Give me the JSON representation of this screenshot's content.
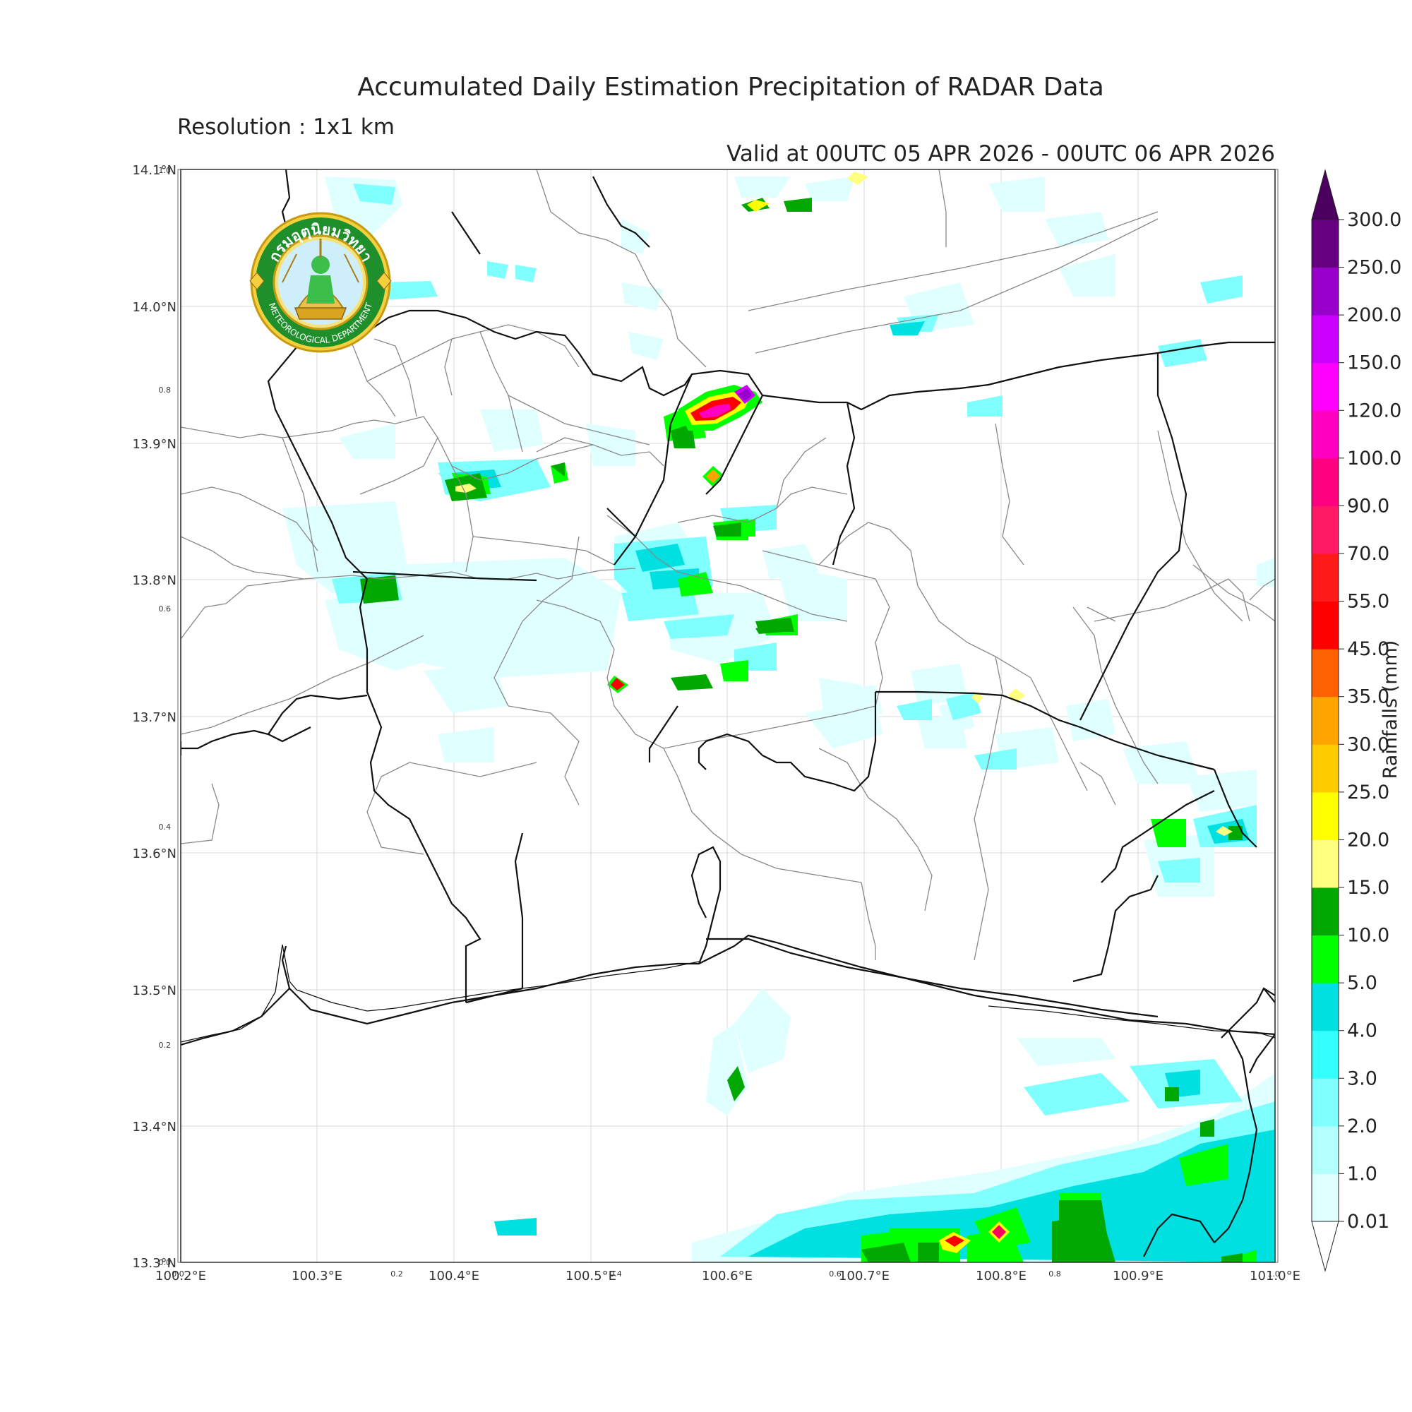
{
  "title": "Accumulated Daily Estimation Precipitation of RADAR Data",
  "resolution": "Resolution : 1x1 km",
  "valid": "Valid at 00UTC 05 APR 2026 - 00UTC 06 APR 2026",
  "logo": {
    "top_text": "กรมอุตุนิยมวิทยา",
    "bottom_text": "METEOROLOGICAL DEPARTMENT"
  },
  "colorbar": {
    "label": "Rainfalls (mm)",
    "levels": [
      "0.01",
      "1.0",
      "2.0",
      "3.0",
      "4.0",
      "5.0",
      "10.0",
      "15.0",
      "20.0",
      "25.0",
      "30.0",
      "35.0",
      "45.0",
      "55.0",
      "70.0",
      "90.0",
      "100.0",
      "120.0",
      "150.0",
      "200.0",
      "250.0",
      "300.0"
    ],
    "colors": [
      "#e0ffff",
      "#b3ffff",
      "#80ffff",
      "#33ffff",
      "#00e0e0",
      "#00ff00",
      "#00a800",
      "#ffff80",
      "#ffff00",
      "#ffcc00",
      "#ffa500",
      "#ff6000",
      "#ff0000",
      "#ff1a1a",
      "#ff1a66",
      "#ff0080",
      "#ff00c0",
      "#ff00ff",
      "#cc00ff",
      "#9900cc",
      "#660080"
    ],
    "extend_top_color": "#4b0060"
  },
  "axes": {
    "x_ticks": [
      "100.2°E",
      "100.3°E",
      "100.4°E",
      "100.5°E",
      "100.6°E",
      "100.7°E",
      "100.8°E",
      "100.9°E",
      "101.0°E"
    ],
    "y_ticks": [
      "14.1°N",
      "14.0°N",
      "13.9°N",
      "13.8°N",
      "13.7°N",
      "13.6°N",
      "13.5°N",
      "13.4°N",
      "13.3°N"
    ],
    "x_small": [
      "0.0",
      "0.2",
      "0.4",
      "0.6",
      "0.8",
      "1.0"
    ],
    "y_small": [
      "1.0",
      "0.8",
      "0.6",
      "0.4",
      "0.2",
      "0.0"
    ]
  }
}
